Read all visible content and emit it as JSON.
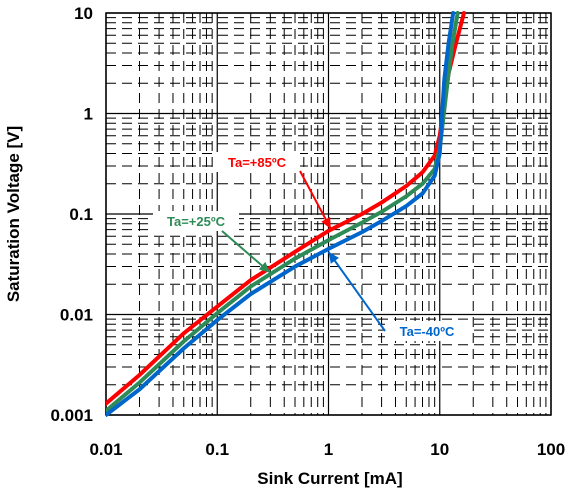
{
  "chart_data": {
    "type": "line",
    "title": "",
    "xlabel": "Sink Current [mA]",
    "ylabel": "Saturation Voltage [V]",
    "x_scale": "log",
    "y_scale": "log",
    "xlim": [
      0.01,
      100
    ],
    "ylim": [
      0.001,
      10
    ],
    "x_tick_labels": [
      "0.01",
      "0.1",
      "1",
      "10",
      "100"
    ],
    "y_tick_labels": [
      "0.001",
      "0.01",
      "0.1",
      "1",
      "10"
    ],
    "grid": true,
    "series": [
      {
        "name": "Ta=+85ºC",
        "color": "#ff0000",
        "x": [
          0.01,
          0.02,
          0.05,
          0.1,
          0.2,
          0.5,
          1,
          2,
          3,
          5,
          7,
          9,
          10,
          11,
          12,
          14,
          16.5
        ],
        "y": [
          0.0013,
          0.0025,
          0.0065,
          0.012,
          0.022,
          0.042,
          0.068,
          0.1,
          0.13,
          0.19,
          0.26,
          0.38,
          0.6,
          1.3,
          2.5,
          5,
          10
        ]
      },
      {
        "name": "Ta=+25ºC",
        "color": "#2e8b57",
        "x": [
          0.01,
          0.02,
          0.05,
          0.1,
          0.2,
          0.5,
          1,
          2,
          3,
          5,
          7,
          9,
          10,
          11,
          12,
          13,
          14.5
        ],
        "y": [
          0.0011,
          0.0021,
          0.0054,
          0.0103,
          0.019,
          0.036,
          0.055,
          0.082,
          0.105,
          0.15,
          0.2,
          0.28,
          0.45,
          1.1,
          2.5,
          5,
          10
        ]
      },
      {
        "name": "Ta=-40ºC",
        "color": "#0066cc",
        "x": [
          0.01,
          0.02,
          0.05,
          0.1,
          0.2,
          0.5,
          1,
          2,
          3,
          5,
          7,
          9,
          10,
          10.5,
          11,
          12,
          13.2
        ],
        "y": [
          0.001,
          0.0018,
          0.0046,
          0.0088,
          0.016,
          0.03,
          0.045,
          0.066,
          0.085,
          0.12,
          0.16,
          0.24,
          0.4,
          1,
          2.2,
          5,
          10
        ]
      }
    ],
    "annotations": [
      {
        "text": "Ta=+85ºC",
        "color": "#ff0000",
        "points_to": [
          1.05,
          0.071
        ]
      },
      {
        "text": "Ta=+25ºC",
        "color": "#2e8b57",
        "points_to": [
          0.3,
          0.026
        ]
      },
      {
        "text": "Ta=-40ºC",
        "color": "#0066cc",
        "points_to": [
          1.0,
          0.042
        ]
      }
    ]
  }
}
